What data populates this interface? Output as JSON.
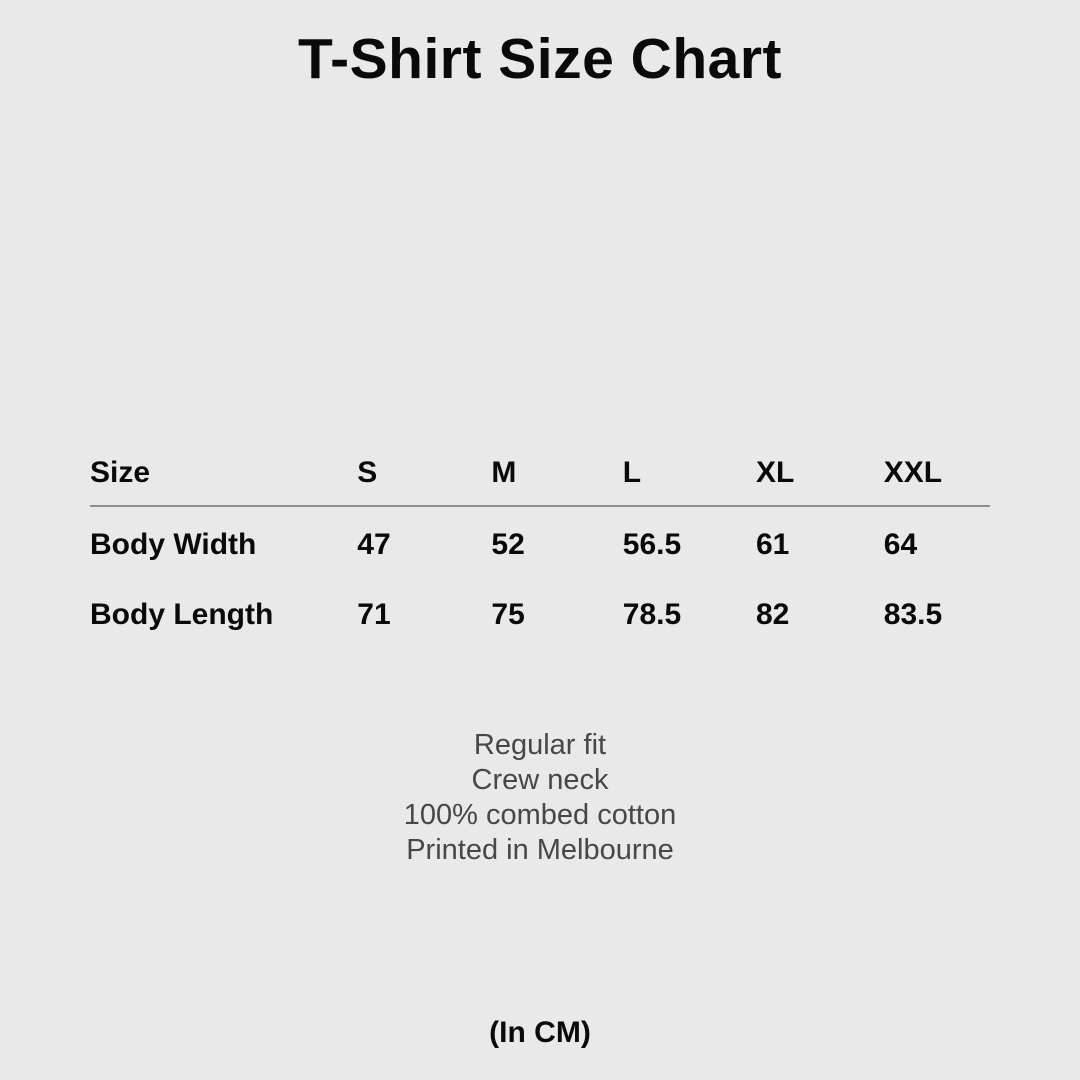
{
  "page": {
    "title": "T-Shirt Size Chart",
    "unit_note": "(In CM)",
    "background_color": "#e9e9e9",
    "heading_text_color": "#0a0a0a",
    "details_text_color": "#474747",
    "divider_color": "#8e8e8e"
  },
  "chart_data": {
    "type": "table",
    "title": "T-Shirt Size Chart",
    "unit": "cm",
    "columns": [
      "Size",
      "S",
      "M",
      "L",
      "XL",
      "XXL"
    ],
    "rows": [
      {
        "label": "Body Width",
        "values": [
          "47",
          "52",
          "56.5",
          "61",
          "64"
        ]
      },
      {
        "label": "Body Length",
        "values": [
          "71",
          "75",
          "78.5",
          "82",
          "83.5"
        ]
      }
    ]
  },
  "details": {
    "lines": [
      "Regular fit",
      "Crew neck",
      "100% combed cotton",
      "Printed in Melbourne"
    ]
  }
}
